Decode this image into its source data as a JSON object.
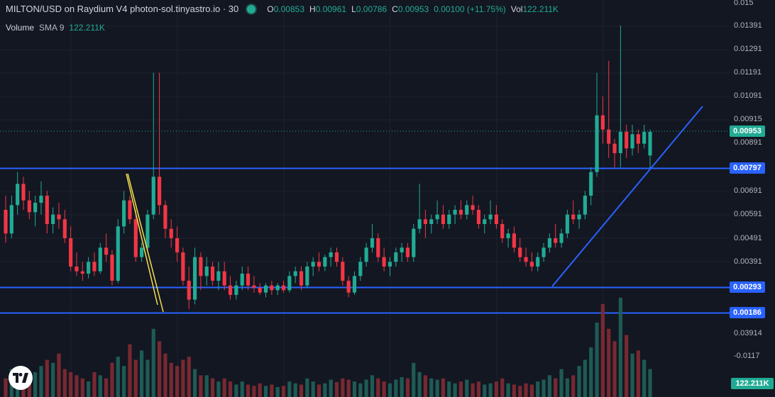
{
  "header": {
    "title": "MILTON/USD on Raydium V4 photon-sol.tinyastro.io · 30",
    "ohlc": [
      {
        "key": "O",
        "value": "0.00853"
      },
      {
        "key": "H",
        "value": "0.00961"
      },
      {
        "key": "L",
        "value": "0.00786"
      },
      {
        "key": "C",
        "value": "0.00953"
      },
      {
        "key": "",
        "value": "0.00100 (+11.75%)"
      },
      {
        "key": "Vol",
        "value": "122.211K"
      }
    ]
  },
  "volume_legend": {
    "label": "Volume",
    "sma": "SMA 9",
    "value": "122.211K"
  },
  "price_axis": [
    "0.015",
    "0.01391",
    "0.01291",
    "0.01191",
    "0.01091",
    "0.00915",
    "0.00891",
    "0.00691",
    "0.00591",
    "0.00491",
    "0.00391"
  ],
  "volume_axis": [
    "0.03914",
    "-0.0117"
  ],
  "tags": {
    "current": "0.00953",
    "line1": "0.00797",
    "line2": "0.00293",
    "line3": "0.00186",
    "volume": "122.211K"
  },
  "colors": {
    "up": "#22ab94",
    "down": "#f23645",
    "hline": "#2962ff",
    "trend": "#2962ff",
    "wedge": "#f5e04b",
    "background": "#131722"
  },
  "icons": {
    "logo": "tradingview-logo-icon"
  },
  "chart_data": {
    "type": "candlestick",
    "series_name": "MILTON/USD",
    "interval": "30",
    "horizontal_lines": [
      0.00797,
      0.00293,
      0.00186
    ],
    "last_close": 0.00953,
    "candles": [
      [
        0.0062,
        0.0068,
        0.0048,
        0.0052
      ],
      [
        0.0052,
        0.0068,
        0.005,
        0.0064
      ],
      [
        0.0064,
        0.0078,
        0.006,
        0.0073
      ],
      [
        0.0073,
        0.0076,
        0.0062,
        0.0066
      ],
      [
        0.0066,
        0.007,
        0.0058,
        0.0061
      ],
      [
        0.0061,
        0.0068,
        0.0055,
        0.0065
      ],
      [
        0.0065,
        0.0074,
        0.006,
        0.0068
      ],
      [
        0.0068,
        0.007,
        0.0052,
        0.0056
      ],
      [
        0.0056,
        0.0063,
        0.0052,
        0.006
      ],
      [
        0.006,
        0.0065,
        0.0054,
        0.0058
      ],
      [
        0.0058,
        0.0062,
        0.0048,
        0.005
      ],
      [
        0.005,
        0.0055,
        0.0036,
        0.0038
      ],
      [
        0.0038,
        0.0044,
        0.0034,
        0.0036
      ],
      [
        0.0036,
        0.004,
        0.0032,
        0.0035
      ],
      [
        0.0035,
        0.0042,
        0.0033,
        0.004
      ],
      [
        0.004,
        0.0044,
        0.0034,
        0.0036
      ],
      [
        0.0036,
        0.0048,
        0.0035,
        0.0046
      ],
      [
        0.0046,
        0.0052,
        0.004,
        0.0043
      ],
      [
        0.0043,
        0.0045,
        0.003,
        0.0032
      ],
      [
        0.0032,
        0.0058,
        0.0031,
        0.0055
      ],
      [
        0.0055,
        0.007,
        0.0052,
        0.0066
      ],
      [
        0.0066,
        0.0068,
        0.0056,
        0.0058
      ],
      [
        0.0058,
        0.0062,
        0.004,
        0.0042
      ],
      [
        0.0042,
        0.0048,
        0.004,
        0.0046
      ],
      [
        0.0046,
        0.0062,
        0.0044,
        0.006
      ],
      [
        0.006,
        0.012,
        0.0058,
        0.0076
      ],
      [
        0.0076,
        0.012,
        0.006,
        0.0064
      ],
      [
        0.0064,
        0.0066,
        0.005,
        0.0054
      ],
      [
        0.0054,
        0.0058,
        0.0046,
        0.005
      ],
      [
        0.005,
        0.0055,
        0.004,
        0.0044
      ],
      [
        0.0044,
        0.0046,
        0.003,
        0.0032
      ],
      [
        0.0032,
        0.0038,
        0.002,
        0.0024
      ],
      [
        0.0024,
        0.0046,
        0.0022,
        0.0042
      ],
      [
        0.0042,
        0.0044,
        0.0028,
        0.0034
      ],
      [
        0.0034,
        0.0042,
        0.003,
        0.0038
      ],
      [
        0.0038,
        0.004,
        0.003,
        0.0032
      ],
      [
        0.0032,
        0.004,
        0.0028,
        0.0036
      ],
      [
        0.0036,
        0.004,
        0.0028,
        0.003
      ],
      [
        0.003,
        0.0034,
        0.0024,
        0.0026
      ],
      [
        0.0026,
        0.0032,
        0.0024,
        0.003
      ],
      [
        0.003,
        0.0038,
        0.0028,
        0.0035
      ],
      [
        0.0035,
        0.0038,
        0.0028,
        0.003
      ],
      [
        0.003,
        0.0034,
        0.0027,
        0.0029
      ],
      [
        0.0029,
        0.0031,
        0.0026,
        0.0027
      ],
      [
        0.0027,
        0.0031,
        0.0025,
        0.003
      ],
      [
        0.003,
        0.0032,
        0.0026,
        0.0028
      ],
      [
        0.0028,
        0.0031,
        0.0026,
        0.003
      ],
      [
        0.003,
        0.0032,
        0.0027,
        0.0028
      ],
      [
        0.0028,
        0.0036,
        0.0027,
        0.0034
      ],
      [
        0.0034,
        0.0038,
        0.0031,
        0.0036
      ],
      [
        0.0036,
        0.0038,
        0.0028,
        0.003
      ],
      [
        0.003,
        0.004,
        0.0029,
        0.0038
      ],
      [
        0.0038,
        0.0042,
        0.0034,
        0.004
      ],
      [
        0.004,
        0.0044,
        0.0036,
        0.0038
      ],
      [
        0.0038,
        0.0043,
        0.0036,
        0.0042
      ],
      [
        0.0042,
        0.0046,
        0.0038,
        0.0044
      ],
      [
        0.0044,
        0.0046,
        0.0038,
        0.004
      ],
      [
        0.004,
        0.0042,
        0.003,
        0.0032
      ],
      [
        0.0032,
        0.0034,
        0.0025,
        0.0027
      ],
      [
        0.0027,
        0.0036,
        0.0026,
        0.0034
      ],
      [
        0.0034,
        0.0042,
        0.0032,
        0.004
      ],
      [
        0.004,
        0.0048,
        0.0038,
        0.0046
      ],
      [
        0.0046,
        0.0056,
        0.0044,
        0.005
      ],
      [
        0.005,
        0.0052,
        0.004,
        0.0042
      ],
      [
        0.0042,
        0.0046,
        0.0036,
        0.0038
      ],
      [
        0.0038,
        0.0042,
        0.0034,
        0.004
      ],
      [
        0.004,
        0.0046,
        0.0038,
        0.0044
      ],
      [
        0.0044,
        0.0048,
        0.004,
        0.0046
      ],
      [
        0.0046,
        0.0048,
        0.004,
        0.0042
      ],
      [
        0.0042,
        0.0056,
        0.004,
        0.0054
      ],
      [
        0.0054,
        0.0073,
        0.0052,
        0.0058
      ],
      [
        0.0058,
        0.0062,
        0.005,
        0.0056
      ],
      [
        0.0056,
        0.006,
        0.0052,
        0.0058
      ],
      [
        0.0058,
        0.0066,
        0.0056,
        0.006
      ],
      [
        0.006,
        0.0064,
        0.0054,
        0.0056
      ],
      [
        0.0056,
        0.0062,
        0.0054,
        0.006
      ],
      [
        0.006,
        0.0064,
        0.0056,
        0.0062
      ],
      [
        0.0062,
        0.0066,
        0.0058,
        0.006
      ],
      [
        0.006,
        0.0066,
        0.0058,
        0.0064
      ],
      [
        0.0064,
        0.0068,
        0.006,
        0.0062
      ],
      [
        0.0062,
        0.0064,
        0.0054,
        0.0056
      ],
      [
        0.0056,
        0.006,
        0.0052,
        0.0058
      ],
      [
        0.0058,
        0.0066,
        0.0056,
        0.006
      ],
      [
        0.006,
        0.0064,
        0.0054,
        0.0056
      ],
      [
        0.0056,
        0.0058,
        0.0048,
        0.005
      ],
      [
        0.005,
        0.0054,
        0.0046,
        0.0052
      ],
      [
        0.0052,
        0.0055,
        0.0044,
        0.0046
      ],
      [
        0.0046,
        0.005,
        0.004,
        0.0042
      ],
      [
        0.0042,
        0.0046,
        0.0038,
        0.004
      ],
      [
        0.004,
        0.0044,
        0.0036,
        0.0038
      ],
      [
        0.0038,
        0.0044,
        0.0036,
        0.0042
      ],
      [
        0.0042,
        0.0048,
        0.004,
        0.0046
      ],
      [
        0.0046,
        0.0052,
        0.0044,
        0.005
      ],
      [
        0.005,
        0.0056,
        0.0046,
        0.0048
      ],
      [
        0.0048,
        0.0054,
        0.0046,
        0.0052
      ],
      [
        0.0052,
        0.0062,
        0.005,
        0.006
      ],
      [
        0.006,
        0.0066,
        0.0056,
        0.0058
      ],
      [
        0.0058,
        0.0062,
        0.0054,
        0.006
      ],
      [
        0.006,
        0.007,
        0.0058,
        0.0068
      ],
      [
        0.0068,
        0.008,
        0.0064,
        0.0078
      ],
      [
        0.0078,
        0.012,
        0.0076,
        0.0102
      ],
      [
        0.0102,
        0.011,
        0.009,
        0.0096
      ],
      [
        0.0096,
        0.0125,
        0.0084,
        0.009
      ],
      [
        0.009,
        0.0092,
        0.008,
        0.0086
      ],
      [
        0.0086,
        0.014,
        0.008,
        0.0095
      ],
      [
        0.0095,
        0.0098,
        0.0084,
        0.0088
      ],
      [
        0.0088,
        0.0098,
        0.0085,
        0.0094
      ],
      [
        0.0094,
        0.0096,
        0.0086,
        0.009
      ],
      [
        0.009,
        0.0098,
        0.0088,
        0.0095
      ],
      [
        0.0085,
        0.0096,
        0.0079,
        0.0095
      ]
    ],
    "volumes": [
      30,
      45,
      40,
      25,
      35,
      40,
      50,
      60,
      55,
      70,
      45,
      40,
      35,
      30,
      25,
      40,
      35,
      30,
      55,
      65,
      50,
      85,
      60,
      75,
      60,
      110,
      90,
      70,
      55,
      50,
      60,
      65,
      45,
      35,
      35,
      30,
      25,
      30,
      25,
      20,
      25,
      20,
      18,
      22,
      18,
      20,
      16,
      18,
      25,
      22,
      20,
      30,
      25,
      20,
      22,
      28,
      24,
      30,
      28,
      25,
      22,
      28,
      35,
      30,
      25,
      22,
      28,
      32,
      30,
      55,
      40,
      35,
      30,
      28,
      30,
      25,
      22,
      25,
      28,
      22,
      25,
      20,
      22,
      25,
      30,
      22,
      20,
      18,
      22,
      20,
      25,
      28,
      35,
      30,
      45,
      30,
      35,
      50,
      60,
      80,
      120,
      150,
      110,
      90,
      160,
      100,
      70,
      75,
      60,
      45
    ]
  }
}
